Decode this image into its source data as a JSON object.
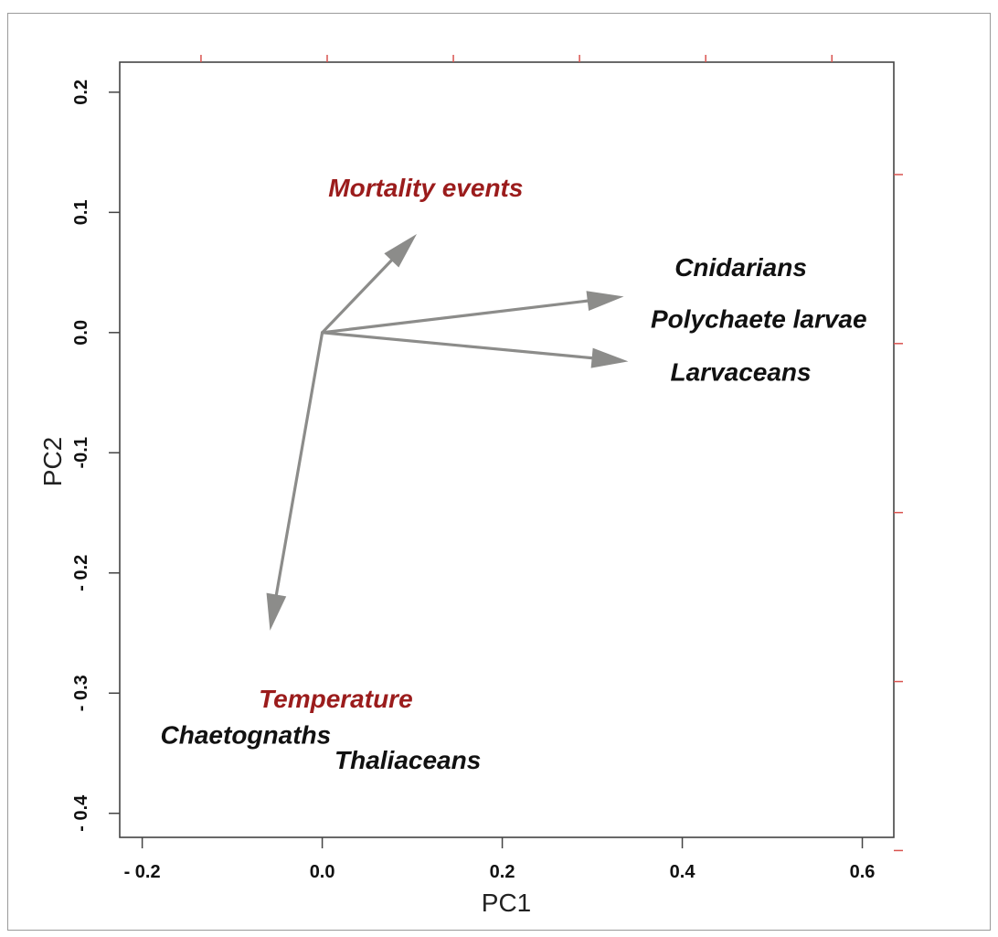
{
  "chart_data": {
    "type": "biplot",
    "xlabel": "PC1",
    "ylabel": "PC2",
    "xlim": [
      -0.225,
      0.635
    ],
    "ylim": [
      -0.42,
      0.225
    ],
    "x_ticks": [
      {
        "value": -0.2,
        "label": "- 0.2"
      },
      {
        "value": 0.0,
        "label": "0.0"
      },
      {
        "value": 0.2,
        "label": "0.2"
      },
      {
        "value": 0.4,
        "label": "0.4"
      },
      {
        "value": 0.6,
        "label": "0.6"
      }
    ],
    "y_ticks": [
      {
        "value": 0.2,
        "label": "0.2"
      },
      {
        "value": 0.1,
        "label": "0.1"
      },
      {
        "value": 0.0,
        "label": "0.0"
      },
      {
        "value": -0.1,
        "label": "-0.1"
      },
      {
        "value": -0.2,
        "label": "- 0.2"
      },
      {
        "value": -0.3,
        "label": "- 0.3"
      },
      {
        "value": -0.4,
        "label": "- 0.4"
      }
    ],
    "arrows": [
      {
        "id": "mortality",
        "x": 0.105,
        "y": 0.082
      },
      {
        "id": "cnidarians",
        "x": 0.335,
        "y": 0.03
      },
      {
        "id": "larvaceans",
        "x": 0.34,
        "y": -0.024
      },
      {
        "id": "temperature",
        "x": -0.058,
        "y": -0.248
      }
    ],
    "labels": [
      {
        "text": "Mortality events",
        "x": 0.115,
        "y": 0.113,
        "color": "#9b1c1c"
      },
      {
        "text": "Cnidarians",
        "x": 0.465,
        "y": 0.047,
        "color": "#111111"
      },
      {
        "text": "Polychaete larvae",
        "x": 0.485,
        "y": 0.004,
        "color": "#111111"
      },
      {
        "text": "Larvaceans",
        "x": 0.465,
        "y": -0.04,
        "color": "#111111"
      },
      {
        "text": "Temperature",
        "x": 0.015,
        "y": -0.312,
        "color": "#9b1c1c"
      },
      {
        "text": "Chaetognaths",
        "x": -0.085,
        "y": -0.342,
        "color": "#111111"
      },
      {
        "text": "Thaliaceans",
        "x": 0.095,
        "y": -0.363,
        "color": "#111111"
      }
    ],
    "colors": {
      "arrow": "#8c8c8a",
      "env_label": "#9b1c1c",
      "species_label": "#111111",
      "tick_mark": "#d9534f"
    },
    "grid": false,
    "legend": "none"
  }
}
